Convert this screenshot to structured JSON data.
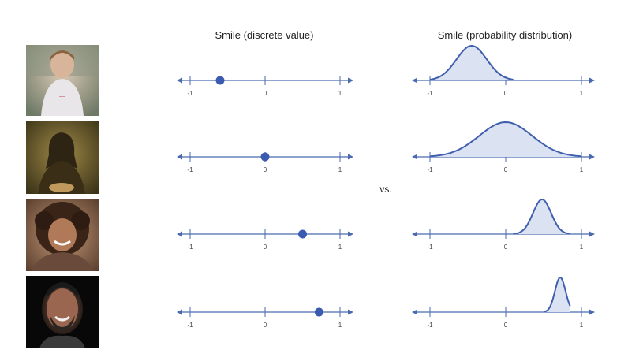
{
  "titles": {
    "discrete": "Smile (discrete value)",
    "distribution": "Smile (probability distribution)",
    "vs": "vs."
  },
  "colors": {
    "axis": "#4a6ab0",
    "marker": "#3a5bb0",
    "curve": "#3f5fae",
    "fill": "#dbe2f2"
  },
  "ticks": [
    {
      "value": -1,
      "label": "-1"
    },
    {
      "value": 0,
      "label": "0"
    },
    {
      "value": 1,
      "label": "1"
    }
  ],
  "rows": [
    {
      "photo": "young boy looking down",
      "smile_value": -0.6,
      "dist_mean": -0.45,
      "dist_sd": 0.2,
      "dist_range": [
        -1.0,
        0.1
      ]
    },
    {
      "photo": "Mona Lisa painting",
      "smile_value": 0.0,
      "dist_mean": 0.0,
      "dist_sd": 0.35,
      "dist_range": [
        -1.0,
        1.0
      ]
    },
    {
      "photo": "smiling curly-haired child",
      "smile_value": 0.5,
      "dist_mean": 0.48,
      "dist_sd": 0.12,
      "dist_range": [
        0.1,
        0.85
      ]
    },
    {
      "photo": "laughing bearded man",
      "smile_value": 0.72,
      "dist_mean": 0.72,
      "dist_sd": 0.07,
      "dist_range": [
        0.5,
        0.85
      ]
    }
  ]
}
